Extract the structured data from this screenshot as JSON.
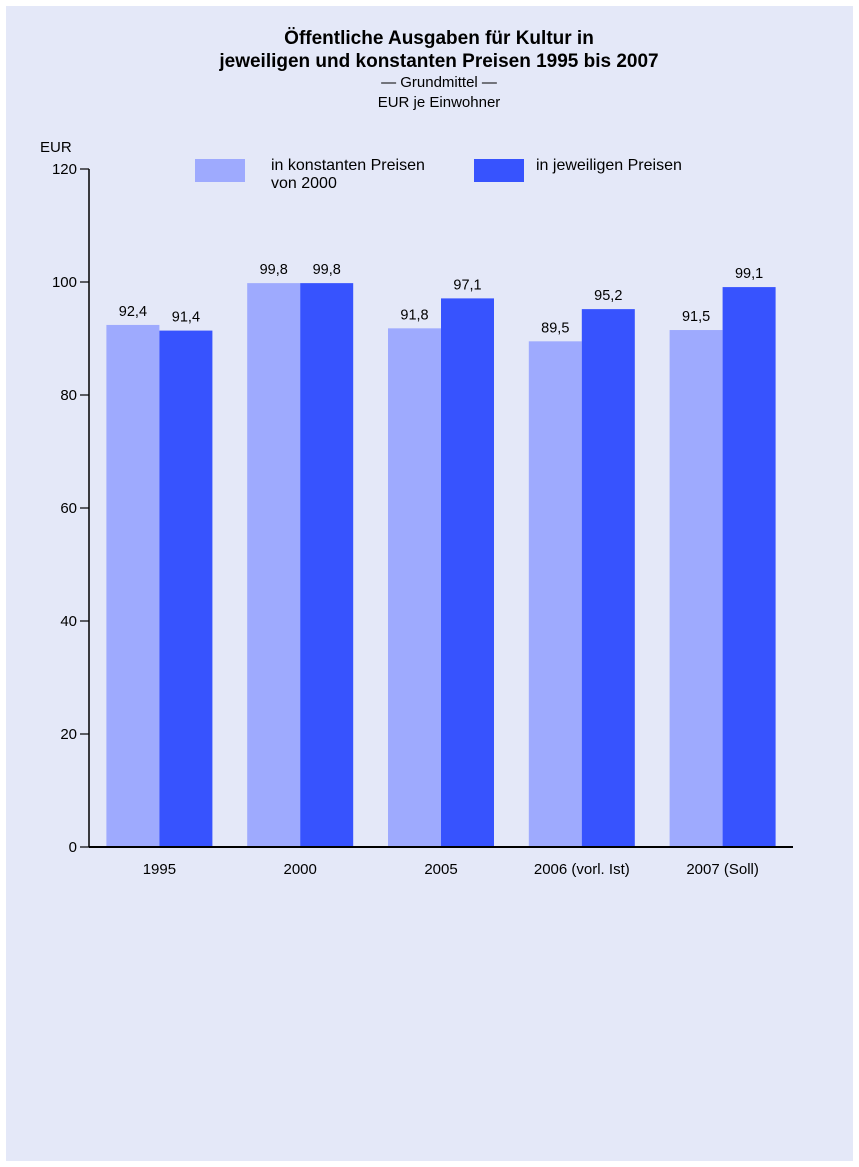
{
  "chart_data": {
    "type": "bar",
    "title_lines": [
      "Öffentliche Ausgaben für Kultur in",
      "jeweiligen und konstanten Preisen 1995 bis 2007"
    ],
    "subtitle_lines": [
      "— Grundmittel —",
      "EUR je Einwohner"
    ],
    "ylabel": "EUR",
    "ylim": [
      0,
      120
    ],
    "yticks": [
      0,
      20,
      40,
      60,
      80,
      100,
      120
    ],
    "categories": [
      "1995",
      "2000",
      "2005",
      "2006 (vorl. Ist)",
      "2007 (Soll)"
    ],
    "series": [
      {
        "name": "in konstanten Preisen von 2000",
        "name_lines": [
          "in konstanten Preisen",
          "von 2000"
        ],
        "color": "#9eaafe",
        "values": [
          92.4,
          99.8,
          91.8,
          89.5,
          91.5
        ],
        "labels": [
          "92,4",
          "99,8",
          "91,8",
          "89,5",
          "91,5"
        ]
      },
      {
        "name": "in jeweiligen Preisen",
        "name_lines": [
          "in jeweiligen Preisen"
        ],
        "color": "#3753fe",
        "values": [
          91.4,
          99.8,
          97.1,
          95.2,
          99.1
        ],
        "labels": [
          "91,4",
          "99,8",
          "97,1",
          "95,2",
          "99,1"
        ]
      }
    ],
    "grid": false,
    "legend_position": "top"
  },
  "colors": {
    "background": "#e4e8f8",
    "axis": "#000000"
  }
}
